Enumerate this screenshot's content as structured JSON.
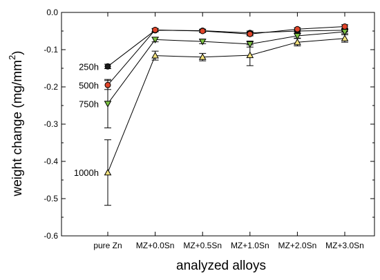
{
  "chart_data": {
    "type": "line",
    "xlabel": "analyzed alloys",
    "ylabel": "weight change (mg/mm",
    "ylabel_superscript": "2",
    "ylabel_close": ")",
    "categories": [
      "pure Zn",
      "MZ+0.0Sn",
      "MZ+0.5Sn",
      "MZ+1.0Sn",
      "MZ+2.0Sn",
      "MZ+3.0Sn"
    ],
    "ylim": [
      -0.6,
      0.0
    ],
    "yticks": [
      0.0,
      -0.1,
      -0.2,
      -0.3,
      -0.4,
      -0.5,
      -0.6
    ],
    "ytick_labels": [
      "0.0",
      "-0.1",
      "-0.2",
      "-0.3",
      "-0.4",
      "-0.5",
      "-0.6"
    ],
    "grid": false,
    "series": [
      {
        "name": "250h",
        "marker": "circle",
        "color": "#1a1a1a",
        "values": [
          -0.145,
          -0.048,
          -0.049,
          -0.055,
          -0.05,
          -0.048
        ],
        "errors": [
          0.006,
          0.004,
          0.004,
          0.005,
          0.004,
          0.004
        ]
      },
      {
        "name": "500h",
        "marker": "circle",
        "color": "#e0452a",
        "values": [
          -0.195,
          -0.047,
          -0.05,
          -0.058,
          -0.045,
          -0.038
        ],
        "errors": [
          0.012,
          0.004,
          0.004,
          0.005,
          0.004,
          0.005
        ]
      },
      {
        "name": "750h",
        "marker": "triangle-down",
        "color": "#7cc242",
        "values": [
          -0.245,
          -0.073,
          -0.078,
          -0.085,
          -0.063,
          -0.052
        ],
        "errors": [
          0.065,
          0.006,
          0.006,
          0.008,
          0.006,
          0.005
        ]
      },
      {
        "name": "1000h",
        "marker": "triangle-up",
        "color": "#f4e27c",
        "values": [
          -0.43,
          -0.116,
          -0.12,
          -0.115,
          -0.08,
          -0.07
        ],
        "errors": [
          0.088,
          0.012,
          0.01,
          0.028,
          0.01,
          0.01
        ]
      }
    ]
  }
}
